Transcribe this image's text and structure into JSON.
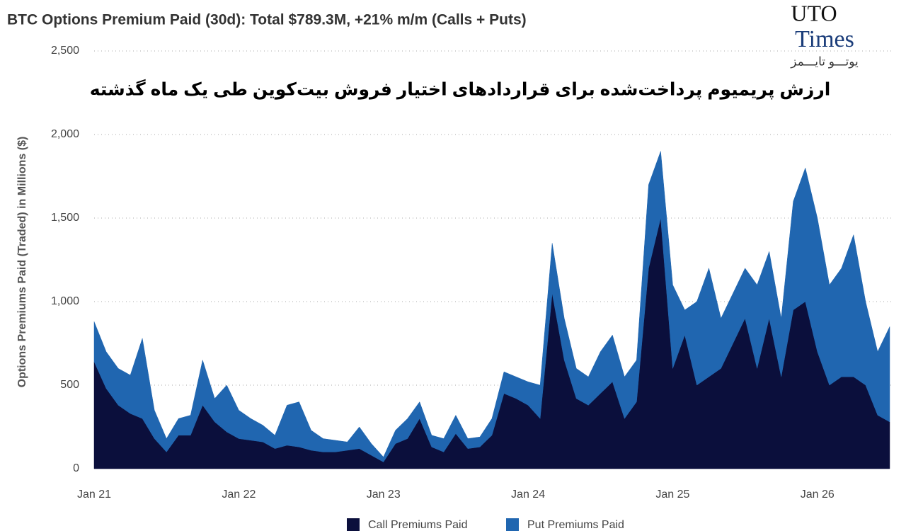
{
  "chart_data": {
    "type": "stacked_area",
    "title": "BTC Options Premium Paid (30d): Total $789.3M, +21% m/m (Calls + Puts)",
    "subtitle": "ارزش پریمیوم پرداخت‌شده برای قراردادهای اختیار فروش بیت‌کوین طی یک ماه گذشته",
    "watermark": {
      "line1": "UTO",
      "line2": "Times",
      "line3": "یوتـــو تایـــمز"
    },
    "y_label": "Options Premiums Paid  (Traded) in Millions ($)",
    "categories": [
      "Jan 21",
      null,
      null,
      null,
      null,
      null,
      null,
      null,
      null,
      null,
      null,
      null,
      "Jan 22",
      null,
      null,
      null,
      null,
      null,
      null,
      null,
      null,
      null,
      null,
      null,
      "Jan 23",
      null,
      null,
      null,
      null,
      null,
      null,
      null,
      null,
      null,
      null,
      null,
      "Jan 24",
      null,
      null,
      null,
      null,
      null,
      null,
      null,
      null,
      null,
      null,
      null,
      "Jan 25",
      null,
      null,
      null,
      null,
      null,
      null,
      null,
      null,
      null,
      null,
      null,
      "Jan 26",
      null,
      null,
      null,
      null,
      null,
      null
    ],
    "series": [
      {
        "name": "Call Premiums Paid",
        "color": "#0b0f3c",
        "values": [
          640,
          480,
          380,
          330,
          300,
          180,
          100,
          200,
          200,
          380,
          280,
          220,
          180,
          170,
          160,
          120,
          140,
          130,
          110,
          100,
          100,
          110,
          120,
          80,
          40,
          150,
          180,
          300,
          130,
          100,
          210,
          120,
          130,
          200,
          450,
          420,
          380,
          300,
          1050,
          650,
          420,
          380,
          450,
          520,
          300,
          400,
          1200,
          1500,
          600,
          800,
          500,
          550,
          600,
          750,
          900,
          600,
          900,
          550,
          950,
          1000,
          700,
          500,
          550,
          550,
          500,
          320,
          280
        ]
      },
      {
        "name": "Put Premiums Paid",
        "color": "#2066b0",
        "values": [
          240,
          220,
          220,
          230,
          480,
          170,
          80,
          100,
          120,
          270,
          140,
          280,
          170,
          130,
          100,
          80,
          240,
          270,
          120,
          80,
          70,
          50,
          130,
          70,
          30,
          80,
          120,
          100,
          70,
          80,
          110,
          60,
          60,
          100,
          130,
          130,
          140,
          200,
          300,
          250,
          180,
          170,
          250,
          280,
          250,
          250,
          500,
          400,
          500,
          150,
          500,
          650,
          300,
          300,
          300,
          500,
          400,
          350,
          650,
          800,
          800,
          600,
          650,
          850,
          500,
          380,
          570
        ]
      }
    ],
    "ylim": [
      0,
      2500
    ],
    "yticks": [
      0,
      500,
      {
        "value": 1000,
        "label": "1,000"
      },
      {
        "value": 1500,
        "label": "1,500"
      },
      {
        "value": 2000,
        "label": "2,000"
      },
      {
        "value": 2500,
        "label": "2,500"
      }
    ],
    "grid": true
  }
}
